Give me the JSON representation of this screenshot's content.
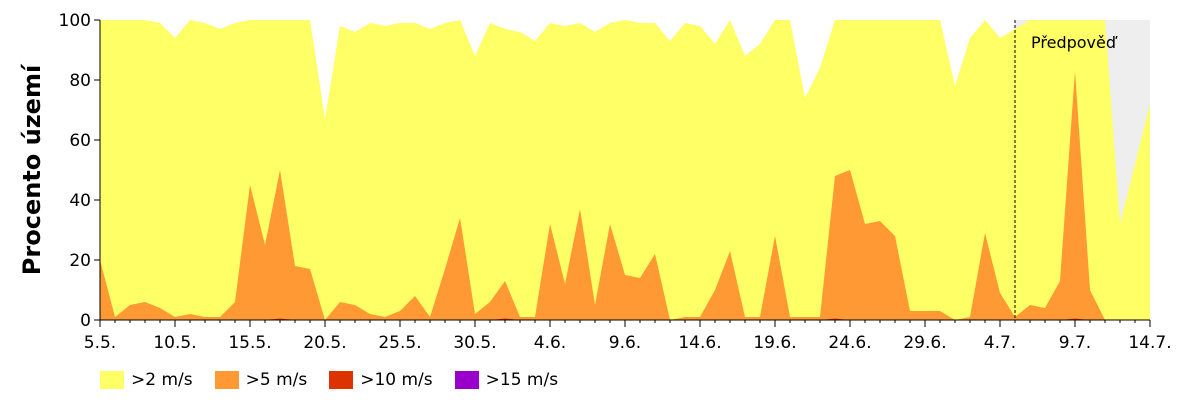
{
  "chart_data": {
    "type": "area",
    "ylabel": "Procento území",
    "ylim": [
      0,
      100
    ],
    "yticks": [
      0,
      20,
      40,
      60,
      80,
      100
    ],
    "xlim": [
      "2022-05-05",
      "2022-07-14"
    ],
    "xticks": [
      {
        "date": "2022-05-05",
        "label": "5.5."
      },
      {
        "date": "2022-05-10",
        "label": "10.5."
      },
      {
        "date": "2022-05-15",
        "label": "15.5."
      },
      {
        "date": "2022-05-20",
        "label": "20.5."
      },
      {
        "date": "2022-05-25",
        "label": "25.5."
      },
      {
        "date": "2022-05-30",
        "label": "30.5."
      },
      {
        "date": "2022-06-04",
        "label": "4.6."
      },
      {
        "date": "2022-06-09",
        "label": "9.6."
      },
      {
        "date": "2022-06-14",
        "label": "14.6."
      },
      {
        "date": "2022-06-19",
        "label": "19.6."
      },
      {
        "date": "2022-06-24",
        "label": "24.6."
      },
      {
        "date": "2022-06-29",
        "label": "29.6."
      },
      {
        "date": "2022-07-04",
        "label": "4.7."
      },
      {
        "date": "2022-07-09",
        "label": "9.7."
      },
      {
        "date": "2022-07-14",
        "label": "14.7."
      }
    ],
    "forecast_start": "2022-07-05",
    "forecast_label": "Předpověď",
    "forecast_color": "#eeeeee",
    "x": [
      "2022-05-05",
      "2022-05-06",
      "2022-05-07",
      "2022-05-08",
      "2022-05-09",
      "2022-05-10",
      "2022-05-11",
      "2022-05-12",
      "2022-05-13",
      "2022-05-14",
      "2022-05-15",
      "2022-05-16",
      "2022-05-17",
      "2022-05-18",
      "2022-05-19",
      "2022-05-20",
      "2022-05-21",
      "2022-05-22",
      "2022-05-23",
      "2022-05-24",
      "2022-05-25",
      "2022-05-26",
      "2022-05-27",
      "2022-05-28",
      "2022-05-29",
      "2022-05-30",
      "2022-05-31",
      "2022-06-01",
      "2022-06-02",
      "2022-06-03",
      "2022-06-04",
      "2022-06-05",
      "2022-06-06",
      "2022-06-07",
      "2022-06-08",
      "2022-06-09",
      "2022-06-10",
      "2022-06-11",
      "2022-06-12",
      "2022-06-13",
      "2022-06-14",
      "2022-06-15",
      "2022-06-16",
      "2022-06-17",
      "2022-06-18",
      "2022-06-19",
      "2022-06-20",
      "2022-06-21",
      "2022-06-22",
      "2022-06-23",
      "2022-06-24",
      "2022-06-25",
      "2022-06-26",
      "2022-06-27",
      "2022-06-28",
      "2022-06-29",
      "2022-06-30",
      "2022-07-01",
      "2022-07-02",
      "2022-07-03",
      "2022-07-04",
      "2022-07-05",
      "2022-07-06",
      "2022-07-07",
      "2022-07-08",
      "2022-07-09",
      "2022-07-10",
      "2022-07-11",
      "2022-07-12",
      "2022-07-13",
      "2022-07-14"
    ],
    "series": [
      {
        "name": ">2 m/s",
        "color": "#ffff66",
        "values": [
          100,
          100,
          100,
          100,
          99,
          94,
          100,
          99,
          97,
          99,
          100,
          100,
          100,
          100,
          100,
          67,
          98,
          96,
          99,
          98,
          99,
          99,
          97,
          99,
          100,
          88,
          99,
          97,
          96,
          93,
          99,
          98,
          99,
          96,
          99,
          100,
          99,
          99,
          93,
          99,
          98,
          92,
          100,
          88,
          92,
          100,
          100,
          74,
          84,
          100,
          100,
          100,
          100,
          100,
          100,
          100,
          100,
          78,
          94,
          100,
          94,
          97,
          100,
          100,
          100,
          100,
          100,
          100,
          32,
          52,
          72
        ]
      },
      {
        "name": ">5 m/s",
        "color": "#ff9933",
        "values": [
          20,
          1,
          5,
          6,
          4,
          1,
          2,
          1,
          1,
          6,
          45,
          25,
          50,
          18,
          17,
          0,
          6,
          5,
          2,
          1,
          3,
          8,
          1,
          17,
          34,
          2,
          6,
          13,
          1,
          1,
          32,
          12,
          37,
          5,
          32,
          15,
          14,
          22,
          0,
          1,
          1,
          10,
          23,
          1,
          1,
          28,
          1,
          1,
          1,
          48,
          50,
          32,
          33,
          28,
          3,
          3,
          3,
          0,
          1,
          29,
          9,
          1,
          5,
          4,
          13,
          83,
          10,
          0,
          0,
          0,
          0
        ]
      },
      {
        "name": ">10 m/s",
        "color": "#dd3300",
        "values": [
          0,
          0,
          0,
          0,
          0,
          0,
          0,
          0,
          0,
          0,
          0,
          0,
          0.5,
          0,
          0,
          0,
          0,
          0,
          0,
          0,
          0,
          0,
          0,
          0,
          0,
          0,
          0,
          0.5,
          0,
          0,
          0,
          0,
          0,
          0,
          0,
          0,
          0,
          0,
          0,
          0,
          0,
          0,
          0,
          0,
          0,
          0,
          0,
          0,
          0,
          0.5,
          0,
          0,
          0,
          0,
          0,
          0,
          0,
          0,
          0,
          0,
          0,
          0,
          0,
          0,
          0,
          0.5,
          0,
          0,
          0,
          0,
          0
        ]
      },
      {
        "name": ">15 m/s",
        "color": "#9900cc",
        "values": [
          0,
          0,
          0,
          0,
          0,
          0,
          0,
          0,
          0,
          0,
          0,
          0,
          0,
          0,
          0,
          0,
          0,
          0,
          0,
          0,
          0,
          0,
          0,
          0,
          0,
          0,
          0,
          0,
          0,
          0,
          0,
          0,
          0,
          0,
          0,
          0,
          0,
          0,
          0,
          0,
          0,
          0,
          0,
          0,
          0,
          0,
          0,
          0,
          0,
          0,
          0,
          0,
          0,
          0,
          0,
          0,
          0,
          0,
          0,
          0,
          0,
          0,
          0,
          0,
          0,
          0,
          0,
          0,
          0,
          0,
          0
        ]
      }
    ],
    "legend": [
      {
        "label": ">2 m/s",
        "color": "#ffff66"
      },
      {
        "label": ">5 m/s",
        "color": "#ff9933"
      },
      {
        "label": ">10 m/s",
        "color": "#dd3300"
      },
      {
        "label": ">15 m/s",
        "color": "#9900cc"
      }
    ],
    "legend_position": "bottom-left",
    "grid": false
  }
}
